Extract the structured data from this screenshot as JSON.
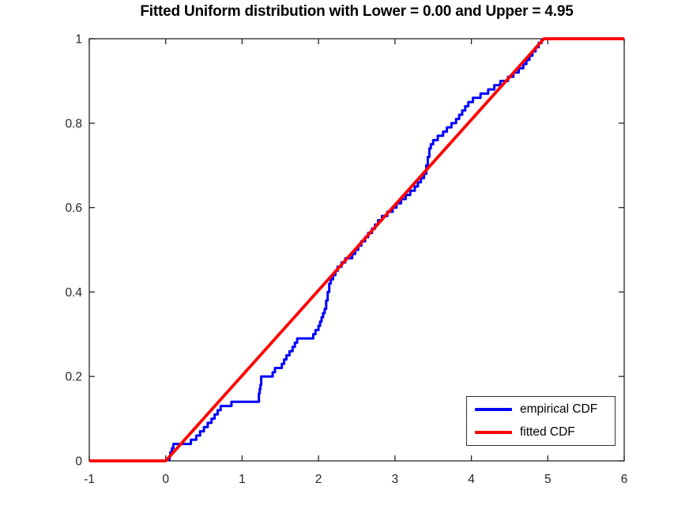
{
  "chart_data": {
    "type": "line",
    "title": "Fitted Uniform distribution with Lower = 0.00 and Upper = 4.95",
    "xlabel": "",
    "ylabel": "",
    "xlim": [
      -1,
      6
    ],
    "ylim": [
      0,
      1
    ],
    "x_ticks": [
      -1,
      0,
      1,
      2,
      3,
      4,
      5,
      6
    ],
    "x_tick_labels": [
      "-1",
      "0",
      "1",
      "2",
      "3",
      "4",
      "5",
      "6"
    ],
    "y_ticks": [
      0,
      0.2,
      0.4,
      0.6,
      0.8,
      1
    ],
    "y_tick_labels": [
      "0",
      "0.2",
      "0.4",
      "0.6",
      "0.8",
      "1"
    ],
    "grid": false,
    "axis_color": "#262626",
    "background_color": "#ffffff",
    "legend": {
      "position": "bottom-right",
      "entries": [
        {
          "label": "empirical CDF",
          "color": "#0000ff",
          "sample_thickness": 3.5
        },
        {
          "label": "fitted CDF",
          "color": "#ff0000",
          "sample_thickness": 4
        }
      ]
    },
    "series": [
      {
        "name": "empirical CDF",
        "style": "step",
        "color": "#0000ff",
        "line_width": 3,
        "start": [
          0.05,
          0
        ],
        "steps": [
          [
            0.05,
            0.01
          ],
          [
            0.06,
            0.02
          ],
          [
            0.08,
            0.03
          ],
          [
            0.1,
            0.04
          ],
          [
            0.33,
            0.05
          ],
          [
            0.4,
            0.06
          ],
          [
            0.45,
            0.07
          ],
          [
            0.5,
            0.08
          ],
          [
            0.55,
            0.09
          ],
          [
            0.6,
            0.1
          ],
          [
            0.64,
            0.11
          ],
          [
            0.68,
            0.12
          ],
          [
            0.72,
            0.13
          ],
          [
            0.86,
            0.14
          ],
          [
            1.22,
            0.16
          ],
          [
            1.23,
            0.17
          ],
          [
            1.24,
            0.18
          ],
          [
            1.25,
            0.2
          ],
          [
            1.4,
            0.21
          ],
          [
            1.43,
            0.22
          ],
          [
            1.52,
            0.23
          ],
          [
            1.55,
            0.24
          ],
          [
            1.58,
            0.25
          ],
          [
            1.62,
            0.26
          ],
          [
            1.66,
            0.27
          ],
          [
            1.69,
            0.28
          ],
          [
            1.72,
            0.29
          ],
          [
            1.93,
            0.3
          ],
          [
            1.96,
            0.31
          ],
          [
            2.0,
            0.32
          ],
          [
            2.02,
            0.33
          ],
          [
            2.04,
            0.34
          ],
          [
            2.06,
            0.35
          ],
          [
            2.08,
            0.36
          ],
          [
            2.1,
            0.38
          ],
          [
            2.12,
            0.4
          ],
          [
            2.14,
            0.42
          ],
          [
            2.16,
            0.43
          ],
          [
            2.19,
            0.44
          ],
          [
            2.22,
            0.45
          ],
          [
            2.25,
            0.46
          ],
          [
            2.3,
            0.47
          ],
          [
            2.35,
            0.48
          ],
          [
            2.44,
            0.49
          ],
          [
            2.48,
            0.5
          ],
          [
            2.52,
            0.51
          ],
          [
            2.56,
            0.52
          ],
          [
            2.61,
            0.53
          ],
          [
            2.65,
            0.54
          ],
          [
            2.7,
            0.55
          ],
          [
            2.74,
            0.56
          ],
          [
            2.78,
            0.57
          ],
          [
            2.83,
            0.58
          ],
          [
            2.9,
            0.59
          ],
          [
            2.97,
            0.6
          ],
          [
            3.02,
            0.61
          ],
          [
            3.08,
            0.62
          ],
          [
            3.14,
            0.63
          ],
          [
            3.2,
            0.64
          ],
          [
            3.26,
            0.65
          ],
          [
            3.3,
            0.66
          ],
          [
            3.34,
            0.67
          ],
          [
            3.38,
            0.68
          ],
          [
            3.41,
            0.7
          ],
          [
            3.43,
            0.72
          ],
          [
            3.45,
            0.74
          ],
          [
            3.47,
            0.75
          ],
          [
            3.5,
            0.76
          ],
          [
            3.56,
            0.77
          ],
          [
            3.63,
            0.78
          ],
          [
            3.68,
            0.79
          ],
          [
            3.74,
            0.8
          ],
          [
            3.8,
            0.81
          ],
          [
            3.84,
            0.82
          ],
          [
            3.88,
            0.83
          ],
          [
            3.92,
            0.84
          ],
          [
            3.96,
            0.85
          ],
          [
            4.02,
            0.86
          ],
          [
            4.12,
            0.87
          ],
          [
            4.22,
            0.88
          ],
          [
            4.3,
            0.89
          ],
          [
            4.38,
            0.9
          ],
          [
            4.48,
            0.91
          ],
          [
            4.55,
            0.92
          ],
          [
            4.62,
            0.93
          ],
          [
            4.68,
            0.94
          ],
          [
            4.72,
            0.95
          ],
          [
            4.76,
            0.96
          ],
          [
            4.8,
            0.97
          ],
          [
            4.84,
            0.98
          ],
          [
            4.88,
            0.99
          ],
          [
            4.92,
            1.0
          ]
        ]
      },
      {
        "name": "fitted CDF",
        "style": "line",
        "color": "#ff0000",
        "line_width": 3.8,
        "points": [
          [
            -1,
            0
          ],
          [
            0,
            0
          ],
          [
            4.95,
            1
          ],
          [
            6,
            1
          ]
        ]
      }
    ]
  }
}
